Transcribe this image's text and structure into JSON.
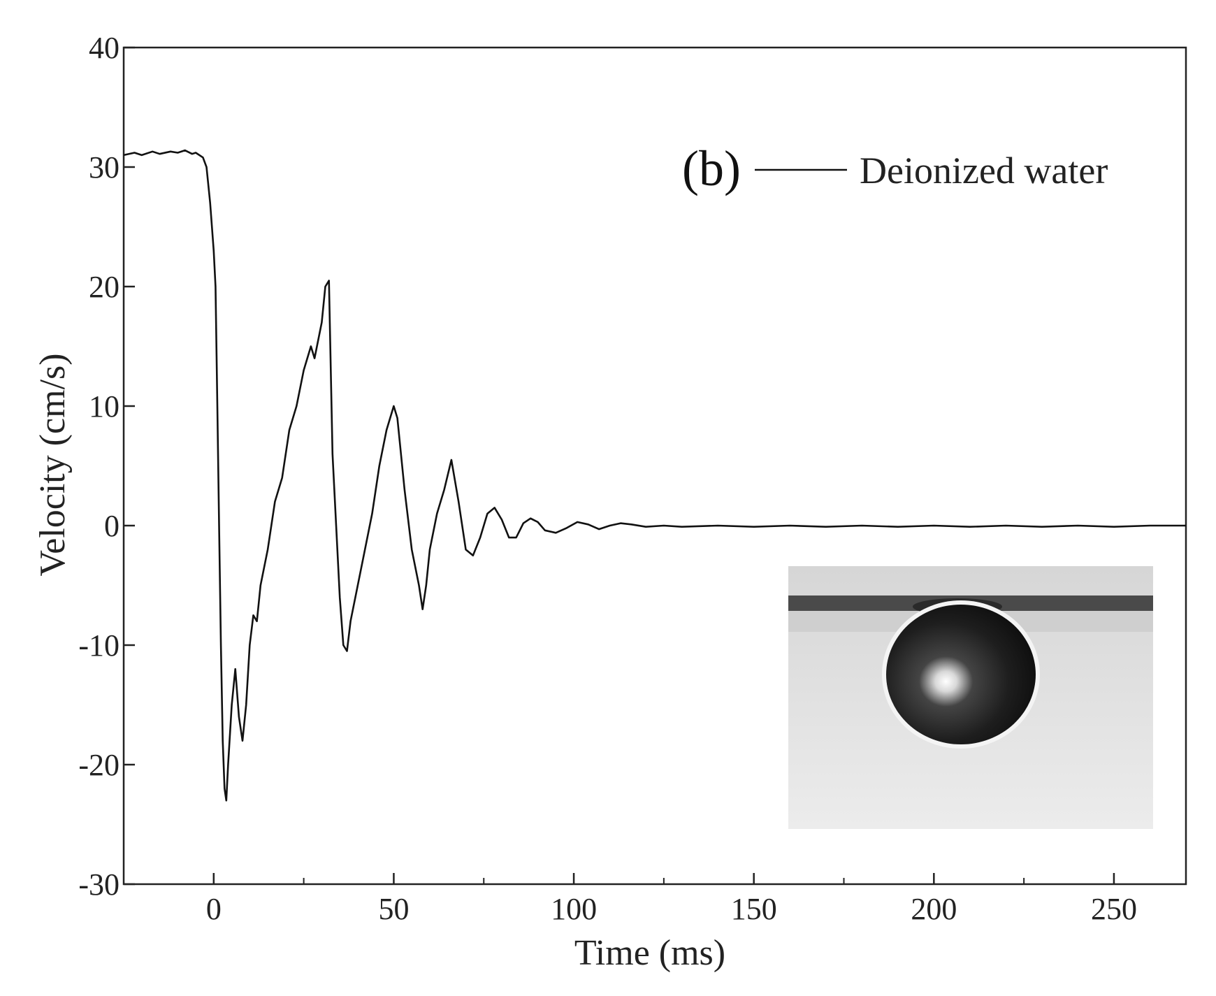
{
  "chart_data": {
    "type": "line",
    "panel_label": "(b)",
    "xlabel": "Time (ms)",
    "ylabel": "Velocity (cm/s)",
    "xlim": [
      -25,
      270
    ],
    "ylim": [
      -30,
      40
    ],
    "x_ticks": [
      0,
      50,
      100,
      150,
      200,
      250
    ],
    "x_minor_ticks": [
      25,
      75,
      125,
      175,
      225
    ],
    "y_ticks": [
      -30,
      -20,
      -10,
      0,
      10,
      20,
      30,
      40
    ],
    "legend_position": "top-right",
    "grid": false,
    "inset": "photograph of a dark droplet hanging beneath a horizontal surface",
    "series": [
      {
        "name": "Deionized water",
        "color": "#111111",
        "points": [
          [
            -25,
            31.0
          ],
          [
            -22,
            31.2
          ],
          [
            -20,
            31.0
          ],
          [
            -17,
            31.3
          ],
          [
            -15,
            31.1
          ],
          [
            -12,
            31.3
          ],
          [
            -10,
            31.2
          ],
          [
            -8,
            31.4
          ],
          [
            -6,
            31.1
          ],
          [
            -5,
            31.2
          ],
          [
            -3,
            30.8
          ],
          [
            -2,
            30.0
          ],
          [
            -1,
            27.0
          ],
          [
            0,
            23.0
          ],
          [
            0.5,
            20.0
          ],
          [
            1,
            10.0
          ],
          [
            1.5,
            0
          ],
          [
            2,
            -10.0
          ],
          [
            2.5,
            -18.0
          ],
          [
            3,
            -22.0
          ],
          [
            3.5,
            -23.0
          ],
          [
            4,
            -20.0
          ],
          [
            5,
            -15.0
          ],
          [
            6,
            -12.0
          ],
          [
            7,
            -16.0
          ],
          [
            8,
            -18.0
          ],
          [
            9,
            -15.0
          ],
          [
            10,
            -10.0
          ],
          [
            11,
            -7.5
          ],
          [
            12,
            -8.0
          ],
          [
            13,
            -5.0
          ],
          [
            15,
            -2.0
          ],
          [
            17,
            2.0
          ],
          [
            19,
            4.0
          ],
          [
            21,
            8.0
          ],
          [
            23,
            10.0
          ],
          [
            25,
            13.0
          ],
          [
            27,
            15.0
          ],
          [
            28,
            14.0
          ],
          [
            30,
            17.0
          ],
          [
            31,
            20.0
          ],
          [
            32,
            20.5
          ],
          [
            33,
            6.0
          ],
          [
            34,
            0
          ],
          [
            35,
            -6.0
          ],
          [
            36,
            -10.0
          ],
          [
            37,
            -10.5
          ],
          [
            38,
            -8.0
          ],
          [
            40,
            -5.0
          ],
          [
            42,
            -2.0
          ],
          [
            44,
            1.0
          ],
          [
            46,
            5.0
          ],
          [
            48,
            8.0
          ],
          [
            50,
            10.0
          ],
          [
            51,
            9.0
          ],
          [
            53,
            3.0
          ],
          [
            55,
            -2.0
          ],
          [
            57,
            -5.0
          ],
          [
            58,
            -7.0
          ],
          [
            59,
            -5.0
          ],
          [
            60,
            -2.0
          ],
          [
            62,
            1.0
          ],
          [
            64,
            3.0
          ],
          [
            66,
            5.5
          ],
          [
            68,
            2.0
          ],
          [
            70,
            -2.0
          ],
          [
            72,
            -2.5
          ],
          [
            74,
            -1.0
          ],
          [
            76,
            1.0
          ],
          [
            78,
            1.5
          ],
          [
            80,
            0.5
          ],
          [
            82,
            -1.0
          ],
          [
            84,
            -1.0
          ],
          [
            86,
            0.2
          ],
          [
            88,
            0.6
          ],
          [
            90,
            0.3
          ],
          [
            92,
            -0.4
          ],
          [
            95,
            -0.6
          ],
          [
            98,
            -0.2
          ],
          [
            101,
            0.3
          ],
          [
            104,
            0.1
          ],
          [
            107,
            -0.3
          ],
          [
            110,
            0.0
          ],
          [
            113,
            0.2
          ],
          [
            116,
            0.1
          ],
          [
            120,
            -0.1
          ],
          [
            125,
            0.0
          ],
          [
            130,
            -0.1
          ],
          [
            140,
            0.0
          ],
          [
            150,
            -0.1
          ],
          [
            160,
            0.0
          ],
          [
            170,
            -0.1
          ],
          [
            180,
            0.0
          ],
          [
            190,
            -0.1
          ],
          [
            200,
            0.0
          ],
          [
            210,
            -0.1
          ],
          [
            220,
            0.0
          ],
          [
            230,
            -0.1
          ],
          [
            240,
            0.0
          ],
          [
            250,
            -0.1
          ],
          [
            260,
            0.0
          ],
          [
            270,
            0.0
          ]
        ]
      }
    ]
  }
}
